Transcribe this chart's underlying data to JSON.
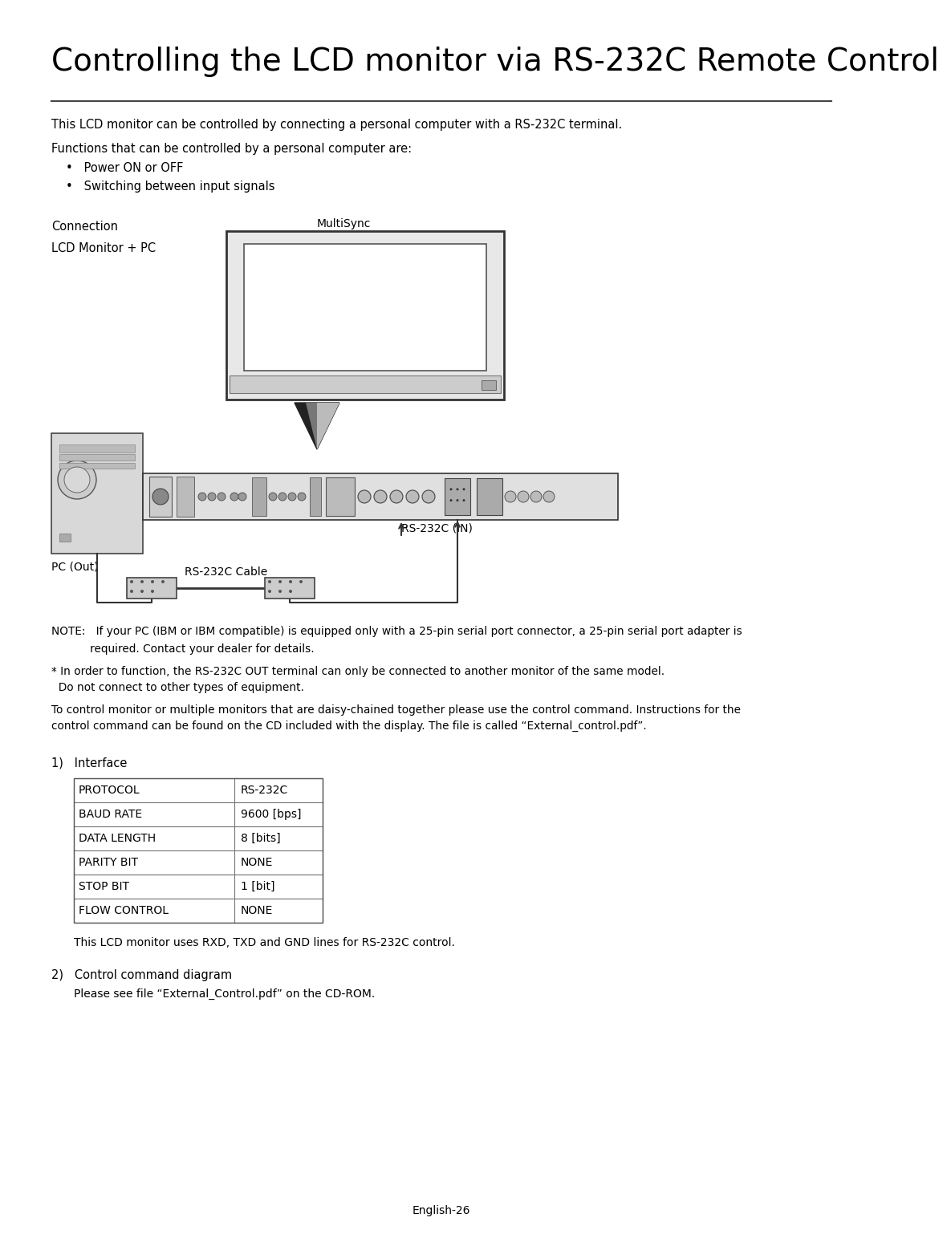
{
  "title": "Controlling the LCD monitor via RS-232C Remote Control",
  "background_color": "#ffffff",
  "text_color": "#000000",
  "para1": "This LCD monitor can be controlled by connecting a personal computer with a RS-232C terminal.",
  "para2": "Functions that can be controlled by a personal computer are:",
  "bullet1": "•   Power ON or OFF",
  "bullet2": "•   Switching between input signals",
  "connection_label": "Connection",
  "lcd_label": "LCD Monitor + PC",
  "multisync_label": "MultiSync",
  "pc_out_label": "PC (Out)",
  "rs232c_in_label": "RS-232C (IN)",
  "rs232c_cable_label": "RS-232C Cable",
  "note_line1": "NOTE:   If your PC (IBM or IBM compatible) is equipped only with a 25-pin serial port connector, a 25-pin serial port adapter is",
  "note_line2": "           required. Contact your dealer for details.",
  "asterisk_line1": "* In order to function, the RS-232C OUT terminal can only be connected to another monitor of the same model.",
  "asterisk_line2": "  Do not connect to other types of equipment.",
  "para3_line1": "To control monitor or multiple monitors that are daisy-chained together please use the control command. Instructions for the",
  "para3_line2": "control command can be found on the CD included with the display. The file is called “External_control.pdf”.",
  "interface_label": "1)   Interface",
  "table_rows": [
    [
      "PROTOCOL",
      "RS-232C"
    ],
    [
      "BAUD RATE",
      "9600 [bps]"
    ],
    [
      "DATA LENGTH",
      "8 [bits]"
    ],
    [
      "PARITY BIT",
      "NONE"
    ],
    [
      "STOP BIT",
      "1 [bit]"
    ],
    [
      "FLOW CONTROL",
      "NONE"
    ]
  ],
  "table_note": "This LCD monitor uses RXD, TXD and GND lines for RS-232C control.",
  "control_label": "2)   Control command diagram",
  "control_text": "Please see file “External_Control.pdf” on the CD-ROM.",
  "footer": "English-26"
}
